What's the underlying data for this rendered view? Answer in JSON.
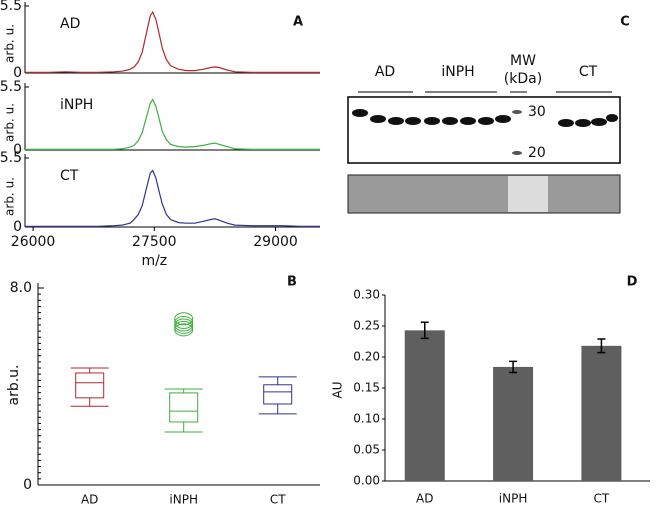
{
  "chart_data": [
    {
      "type": "line",
      "panel": "A",
      "xlabel": "m/z",
      "ylabel": "arb. u.",
      "xlim": [
        25900,
        29550
      ],
      "xticks": [
        26000,
        27500,
        29000
      ],
      "ylim": [
        0,
        5.5
      ],
      "yticks": [
        0,
        5.5
      ],
      "x": [
        25900,
        26000,
        26200,
        26400,
        26600,
        26800,
        27000,
        27100,
        27200,
        27250,
        27300,
        27350,
        27400,
        27450,
        27480,
        27520,
        27560,
        27600,
        27650,
        27700,
        27800,
        27900,
        28000,
        28100,
        28200,
        28250,
        28300,
        28400,
        28500,
        28700,
        28900,
        29100,
        29300,
        29550
      ],
      "series": [
        {
          "name": "AD",
          "color": "#b3262e",
          "values": [
            0.05,
            0.05,
            0.05,
            0.1,
            0.05,
            0.05,
            0.1,
            0.15,
            0.3,
            0.5,
            0.9,
            1.7,
            3.2,
            4.7,
            5.0,
            4.4,
            3.2,
            2.0,
            1.1,
            0.6,
            0.3,
            0.2,
            0.2,
            0.3,
            0.45,
            0.5,
            0.45,
            0.25,
            0.1,
            0.05,
            0.05,
            0.05,
            0.05,
            0.05
          ]
        },
        {
          "name": "iNPH",
          "color": "#3fae3f",
          "values": [
            0.05,
            0.05,
            0.05,
            0.05,
            0.05,
            0.05,
            0.05,
            0.1,
            0.25,
            0.4,
            0.8,
            1.5,
            2.8,
            4.1,
            4.4,
            3.8,
            2.7,
            1.6,
            0.9,
            0.5,
            0.3,
            0.25,
            0.3,
            0.4,
            0.55,
            0.6,
            0.5,
            0.3,
            0.1,
            0.05,
            0.05,
            0.05,
            0.05,
            0.05
          ]
        },
        {
          "name": "CT",
          "color": "#2e3590",
          "values": [
            0.05,
            0.05,
            0.05,
            0.05,
            0.05,
            0.05,
            0.1,
            0.15,
            0.3,
            0.6,
            1.0,
            1.7,
            3.0,
            4.3,
            4.5,
            3.9,
            2.8,
            1.8,
            1.0,
            0.6,
            0.35,
            0.3,
            0.3,
            0.45,
            0.6,
            0.65,
            0.55,
            0.3,
            0.15,
            0.1,
            0.1,
            0.1,
            0.05,
            0.05
          ]
        }
      ]
    },
    {
      "type": "box",
      "panel": "B",
      "ylabel": "arb.u.",
      "ylim": [
        0,
        8
      ],
      "yticks": [
        0,
        {
          "value": 8,
          "label": "8.0"
        }
      ],
      "categories": [
        "AD",
        "iNPH",
        "CT"
      ],
      "colors": [
        "#b3262e",
        "#3fae3f",
        "#2e3590"
      ],
      "boxes": [
        {
          "whislo": 3.2,
          "q1": 3.54,
          "med": 4.15,
          "q3": 4.55,
          "whishi": 4.75,
          "fliers": []
        },
        {
          "whislo": 2.15,
          "q1": 2.56,
          "med": 3.0,
          "q3": 3.74,
          "whishi": 3.9,
          "fliers": [
            6.3,
            6.4,
            6.5,
            6.6,
            6.75
          ]
        },
        {
          "whislo": 2.89,
          "q1": 3.29,
          "med": 3.78,
          "q3": 4.07,
          "whishi": 4.39,
          "fliers": []
        }
      ]
    },
    {
      "type": "bar",
      "panel": "D",
      "ylabel": "AU",
      "ylim": [
        0,
        0.3
      ],
      "yticks": [
        {
          "value": 0,
          "label": "0.00"
        },
        {
          "value": 0.05,
          "label": "0.05"
        },
        {
          "value": 0.1,
          "label": "0.10"
        },
        {
          "value": 0.15,
          "label": "0.15"
        },
        {
          "value": 0.2,
          "label": "0.20"
        },
        {
          "value": 0.25,
          "label": "0.25"
        },
        {
          "value": 0.3,
          "label": "0.30"
        }
      ],
      "categories": [
        "AD",
        "iNPH",
        "CT"
      ],
      "values": [
        0.243,
        0.184,
        0.218
      ],
      "errors": [
        0.013,
        0.009,
        0.011
      ],
      "color": "#5f5f5f"
    }
  ],
  "blot": {
    "panel": "C",
    "groups": [
      "AD",
      "iNPH",
      "CT"
    ],
    "mw_label": [
      "MW",
      "(kDa)"
    ],
    "markers": [
      30,
      20
    ]
  }
}
